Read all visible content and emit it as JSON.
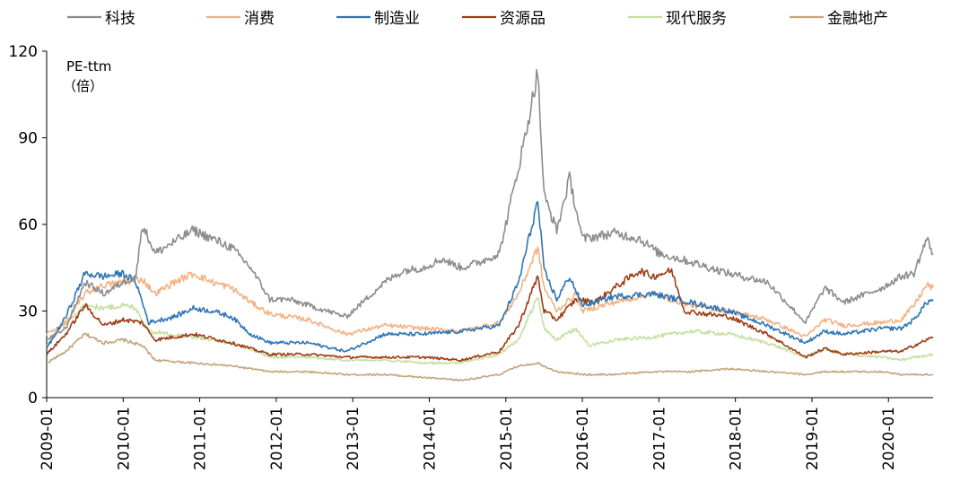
{
  "chart_data": {
    "type": "line",
    "ylabel": "PE-ttm",
    "yunit": "（倍）",
    "ylim": [
      0,
      120
    ],
    "yticks": [
      "0",
      "30",
      "60",
      "90",
      "120"
    ],
    "x_start": "2009-01",
    "x_end": "2020-08",
    "xticks": [
      "2009-01",
      "2010-01",
      "2011-01",
      "2012-01",
      "2013-01",
      "2014-01",
      "2015-01",
      "2016-01",
      "2017-01",
      "2018-01",
      "2019-01",
      "2020-01"
    ],
    "grid": false,
    "legend_position": "top",
    "series": [
      {
        "name": "科技",
        "color": "#8c8c8c",
        "points": [
          [
            "2009-01",
            20
          ],
          [
            "2009-04",
            24
          ],
          [
            "2009-07",
            40
          ],
          [
            "2009-10",
            36
          ],
          [
            "2010-01",
            40
          ],
          [
            "2010-03",
            42
          ],
          [
            "2010-04",
            60
          ],
          [
            "2010-06",
            50
          ],
          [
            "2010-09",
            54
          ],
          [
            "2010-12",
            58
          ],
          [
            "2011-03",
            55
          ],
          [
            "2011-06",
            52
          ],
          [
            "2011-09",
            45
          ],
          [
            "2011-12",
            34
          ],
          [
            "2012-03",
            34
          ],
          [
            "2012-06",
            32
          ],
          [
            "2012-09",
            30
          ],
          [
            "2012-12",
            28
          ],
          [
            "2013-03",
            34
          ],
          [
            "2013-06",
            40
          ],
          [
            "2013-09",
            44
          ],
          [
            "2013-12",
            45
          ],
          [
            "2014-03",
            48
          ],
          [
            "2014-06",
            45
          ],
          [
            "2014-09",
            47
          ],
          [
            "2014-12",
            50
          ],
          [
            "2015-02",
            70
          ],
          [
            "2015-04",
            90
          ],
          [
            "2015-06",
            113
          ],
          [
            "2015-07",
            70
          ],
          [
            "2015-09",
            58
          ],
          [
            "2015-11",
            76
          ],
          [
            "2016-01",
            55
          ],
          [
            "2016-06",
            57
          ],
          [
            "2016-10",
            55
          ],
          [
            "2017-01",
            50
          ],
          [
            "2017-06",
            47
          ],
          [
            "2017-12",
            43
          ],
          [
            "2018-06",
            40
          ],
          [
            "2018-12",
            26
          ],
          [
            "2019-03",
            38
          ],
          [
            "2019-06",
            33
          ],
          [
            "2019-12",
            38
          ],
          [
            "2020-03",
            42
          ],
          [
            "2020-05",
            43
          ],
          [
            "2020-07",
            55
          ],
          [
            "2020-08",
            50
          ]
        ]
      },
      {
        "name": "消费",
        "color": "#f4b183",
        "points": [
          [
            "2009-01",
            22
          ],
          [
            "2009-04",
            26
          ],
          [
            "2009-07",
            36
          ],
          [
            "2009-10",
            39
          ],
          [
            "2010-01",
            40
          ],
          [
            "2010-04",
            41
          ],
          [
            "2010-06",
            36
          ],
          [
            "2010-09",
            40
          ],
          [
            "2010-12",
            43
          ],
          [
            "2011-03",
            40
          ],
          [
            "2011-06",
            38
          ],
          [
            "2011-09",
            33
          ],
          [
            "2011-12",
            29
          ],
          [
            "2012-06",
            27
          ],
          [
            "2012-12",
            22
          ],
          [
            "2013-06",
            25
          ],
          [
            "2013-12",
            24
          ],
          [
            "2014-06",
            23
          ],
          [
            "2014-12",
            26
          ],
          [
            "2015-03",
            36
          ],
          [
            "2015-06",
            52
          ],
          [
            "2015-07",
            38
          ],
          [
            "2015-09",
            30
          ],
          [
            "2015-12",
            36
          ],
          [
            "2016-01",
            30
          ],
          [
            "2016-06",
            33
          ],
          [
            "2016-12",
            36
          ],
          [
            "2017-06",
            32
          ],
          [
            "2017-12",
            30
          ],
          [
            "2018-06",
            27
          ],
          [
            "2018-12",
            21
          ],
          [
            "2019-03",
            27
          ],
          [
            "2019-06",
            25
          ],
          [
            "2019-12",
            26
          ],
          [
            "2020-03",
            27
          ],
          [
            "2020-05",
            32
          ],
          [
            "2020-07",
            39
          ],
          [
            "2020-08",
            38
          ]
        ]
      },
      {
        "name": "制造业",
        "color": "#2e75b6",
        "points": [
          [
            "2009-01",
            17
          ],
          [
            "2009-04",
            28
          ],
          [
            "2009-07",
            43
          ],
          [
            "2009-10",
            42
          ],
          [
            "2010-01",
            43
          ],
          [
            "2010-03",
            40
          ],
          [
            "2010-05",
            26
          ],
          [
            "2010-09",
            28
          ],
          [
            "2010-12",
            31
          ],
          [
            "2011-03",
            30
          ],
          [
            "2011-06",
            28
          ],
          [
            "2011-09",
            22
          ],
          [
            "2011-12",
            19
          ],
          [
            "2012-06",
            19
          ],
          [
            "2012-12",
            16
          ],
          [
            "2013-06",
            22
          ],
          [
            "2013-12",
            22
          ],
          [
            "2014-06",
            23
          ],
          [
            "2014-12",
            25
          ],
          [
            "2015-03",
            40
          ],
          [
            "2015-06",
            68
          ],
          [
            "2015-07",
            44
          ],
          [
            "2015-09",
            34
          ],
          [
            "2015-11",
            42
          ],
          [
            "2016-01",
            32
          ],
          [
            "2016-06",
            35
          ],
          [
            "2016-12",
            36
          ],
          [
            "2017-06",
            33
          ],
          [
            "2017-12",
            30
          ],
          [
            "2018-06",
            25
          ],
          [
            "2018-12",
            19
          ],
          [
            "2019-03",
            23
          ],
          [
            "2019-06",
            22
          ],
          [
            "2019-12",
            24
          ],
          [
            "2020-03",
            24
          ],
          [
            "2020-05",
            27
          ],
          [
            "2020-07",
            33
          ],
          [
            "2020-08",
            34
          ]
        ]
      },
      {
        "name": "资源品",
        "color": "#9e3d13",
        "points": [
          [
            "2009-01",
            15
          ],
          [
            "2009-04",
            22
          ],
          [
            "2009-07",
            32
          ],
          [
            "2009-10",
            25
          ],
          [
            "2010-01",
            27
          ],
          [
            "2010-04",
            26
          ],
          [
            "2010-06",
            20
          ],
          [
            "2010-09",
            21
          ],
          [
            "2010-12",
            22
          ],
          [
            "2011-06",
            19
          ],
          [
            "2011-12",
            15
          ],
          [
            "2012-06",
            15
          ],
          [
            "2012-12",
            14
          ],
          [
            "2013-06",
            14
          ],
          [
            "2013-12",
            14
          ],
          [
            "2014-06",
            13
          ],
          [
            "2014-12",
            16
          ],
          [
            "2015-03",
            25
          ],
          [
            "2015-06",
            42
          ],
          [
            "2015-07",
            30
          ],
          [
            "2015-09",
            27
          ],
          [
            "2015-12",
            34
          ],
          [
            "2016-03",
            33
          ],
          [
            "2016-06",
            38
          ],
          [
            "2016-10",
            44
          ],
          [
            "2016-12",
            42
          ],
          [
            "2017-03",
            44
          ],
          [
            "2017-05",
            30
          ],
          [
            "2017-12",
            28
          ],
          [
            "2018-06",
            22
          ],
          [
            "2018-12",
            14
          ],
          [
            "2019-03",
            17
          ],
          [
            "2019-06",
            15
          ],
          [
            "2019-12",
            16
          ],
          [
            "2020-03",
            16
          ],
          [
            "2020-05",
            18
          ],
          [
            "2020-08",
            21
          ]
        ]
      },
      {
        "name": "现代服务",
        "color": "#c5e0a0",
        "points": [
          [
            "2009-01",
            18
          ],
          [
            "2009-04",
            26
          ],
          [
            "2009-07",
            32
          ],
          [
            "2009-10",
            31
          ],
          [
            "2010-01",
            32
          ],
          [
            "2010-03",
            31
          ],
          [
            "2010-05",
            23
          ],
          [
            "2010-12",
            21
          ],
          [
            "2011-06",
            19
          ],
          [
            "2011-12",
            14
          ],
          [
            "2012-06",
            14
          ],
          [
            "2012-12",
            13
          ],
          [
            "2013-06",
            13
          ],
          [
            "2013-12",
            12
          ],
          [
            "2014-06",
            12
          ],
          [
            "2014-12",
            15
          ],
          [
            "2015-03",
            20
          ],
          [
            "2015-06",
            35
          ],
          [
            "2015-07",
            24
          ],
          [
            "2015-09",
            20
          ],
          [
            "2015-12",
            24
          ],
          [
            "2016-02",
            18
          ],
          [
            "2016-06",
            20
          ],
          [
            "2016-12",
            21
          ],
          [
            "2017-06",
            23
          ],
          [
            "2017-12",
            22
          ],
          [
            "2018-06",
            19
          ],
          [
            "2018-12",
            14
          ],
          [
            "2019-03",
            17
          ],
          [
            "2019-06",
            15
          ],
          [
            "2019-12",
            14
          ],
          [
            "2020-03",
            13
          ],
          [
            "2020-05",
            14
          ],
          [
            "2020-08",
            15
          ]
        ]
      },
      {
        "name": "金融地产",
        "color": "#c4a47c",
        "points": [
          [
            "2009-01",
            12
          ],
          [
            "2009-04",
            16
          ],
          [
            "2009-07",
            22
          ],
          [
            "2009-10",
            19
          ],
          [
            "2010-01",
            20
          ],
          [
            "2010-04",
            18
          ],
          [
            "2010-06",
            13
          ],
          [
            "2010-12",
            12
          ],
          [
            "2011-06",
            11
          ],
          [
            "2011-12",
            9
          ],
          [
            "2012-06",
            9
          ],
          [
            "2012-12",
            8
          ],
          [
            "2013-06",
            8
          ],
          [
            "2013-12",
            7
          ],
          [
            "2014-06",
            6
          ],
          [
            "2014-12",
            8
          ],
          [
            "2015-03",
            11
          ],
          [
            "2015-06",
            12
          ],
          [
            "2015-09",
            9
          ],
          [
            "2016-01",
            8
          ],
          [
            "2016-06",
            8
          ],
          [
            "2016-12",
            9
          ],
          [
            "2017-06",
            9
          ],
          [
            "2017-12",
            10
          ],
          [
            "2018-06",
            9
          ],
          [
            "2018-12",
            8
          ],
          [
            "2019-03",
            9
          ],
          [
            "2019-06",
            9
          ],
          [
            "2019-12",
            9
          ],
          [
            "2020-03",
            8
          ],
          [
            "2020-05",
            8
          ],
          [
            "2020-08",
            8
          ]
        ]
      }
    ]
  }
}
